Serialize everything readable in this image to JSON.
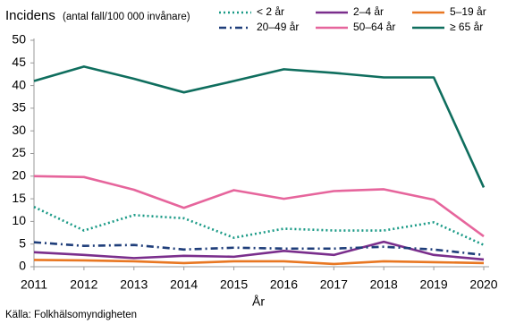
{
  "chart_data": {
    "type": "line",
    "title": "Incidens",
    "subtitle": "(antal fall/100 000 invånare)",
    "x_label": "År",
    "source": "Källa: Folkhälsomyndigheten",
    "x": [
      2011,
      2012,
      2013,
      2014,
      2015,
      2016,
      2017,
      2018,
      2019,
      2020
    ],
    "xlim": [
      2011,
      2020
    ],
    "xticks": [
      2011,
      2012,
      2013,
      2014,
      2015,
      2016,
      2017,
      2018,
      2019,
      2020
    ],
    "ylim": [
      0,
      50
    ],
    "yticks": [
      0,
      5,
      10,
      15,
      20,
      25,
      30,
      35,
      40,
      45,
      50
    ],
    "grid": false,
    "legend": "top-right",
    "series": [
      {
        "name": "< 2 år",
        "color": "#1a9a86",
        "dash": "dotted",
        "values": [
          13.2,
          8,
          11.4,
          10.7,
          6.4,
          8.4,
          8,
          8,
          9.8,
          4.8
        ]
      },
      {
        "name": "2–4 år",
        "color": "#7a2e8c",
        "dash": "solid",
        "values": [
          3.2,
          2.6,
          1.9,
          2.4,
          2.2,
          3.5,
          2.6,
          5.5,
          2.6,
          1.6
        ]
      },
      {
        "name": "5–19 år",
        "color": "#e87722",
        "dash": "solid",
        "values": [
          1.5,
          1.4,
          1.2,
          0.8,
          1.2,
          1.2,
          0.6,
          1.2,
          1,
          0.8
        ]
      },
      {
        "name": "20–49 år",
        "color": "#1f3e7a",
        "dash": "dashdot",
        "values": [
          5.4,
          4.6,
          4.8,
          3.8,
          4.2,
          4,
          4,
          4.4,
          3.8,
          2.6
        ]
      },
      {
        "name": "50–64 år",
        "color": "#e6659c",
        "dash": "solid",
        "values": [
          20,
          19.8,
          17,
          13,
          16.9,
          15,
          16.7,
          17.1,
          14.8,
          6.7
        ]
      },
      {
        "name": "≥ 65 år",
        "color": "#0f6e5e",
        "dash": "solid",
        "values": [
          41,
          44.2,
          41.5,
          38.5,
          41,
          43.6,
          42.8,
          41.8,
          41.8,
          17.5
        ]
      }
    ]
  }
}
